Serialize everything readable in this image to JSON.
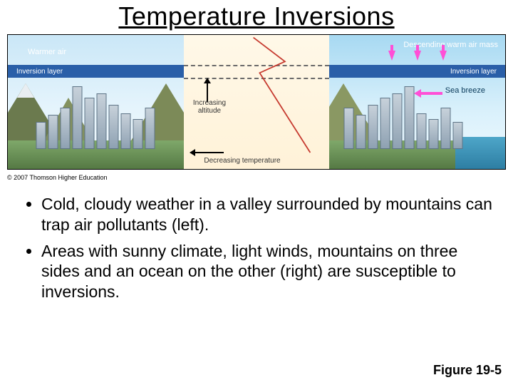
{
  "title": "Temperature Inversions",
  "copyright": "© 2007 Thomson Higher Education",
  "figure_ref": "Figure 19-5",
  "colors": {
    "inversion_band": "#2a5fa8",
    "arrow_magenta": "#ff4fd6",
    "temp_line": "#c63a2f",
    "dash": "#6b6b6b",
    "mid_bg_top": "#fff8e8",
    "mid_bg_bottom": "#fff2d8",
    "sky_top": "#cae7f7",
    "sky_bottom": "#f5fbff",
    "mountain": "#6b7a4e",
    "ground": "#7fa86a",
    "ocean": "#4ea6c9"
  },
  "panels": {
    "left": {
      "warmer_air": "Warmer air",
      "inversion_layer": "Inversion layer"
    },
    "middle": {
      "type": "line",
      "altitude_label": "Increasing altitude",
      "temperature_label": "Decreasing temperature",
      "dash_y": [
        42,
        60
      ],
      "temp_line_points": [
        [
          200,
          186
        ],
        [
          120,
          60
        ],
        [
          160,
          42
        ],
        [
          110,
          4
        ]
      ],
      "line_color": "#c63a2f",
      "line_width": 2
    },
    "right": {
      "descending_label": "Descending warm air mass",
      "inversion_layer": "Inversion layer",
      "sea_breeze": "Sea breeze",
      "down_arrow_count": 3
    }
  },
  "bullets": [
    "Cold, cloudy weather in a valley surrounded by mountains can trap air pollutants (left).",
    "Areas with sunny climate, light winds, mountains on three sides and an ocean on the other (right) are susceptible to inversions."
  ]
}
